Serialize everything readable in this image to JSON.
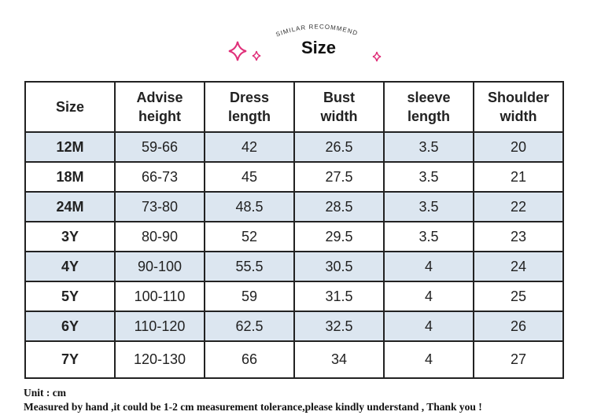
{
  "header": {
    "subtitle": "SIMILAR RECOMMEND",
    "title": "Size"
  },
  "table": {
    "columns": [
      [
        "Size"
      ],
      [
        "Advise",
        "height"
      ],
      [
        "Dress",
        "length"
      ],
      [
        "Bust",
        "width"
      ],
      [
        "sleeve",
        "length"
      ],
      [
        "Shoulder",
        "width"
      ]
    ],
    "rows": [
      [
        "12M",
        "59-66",
        42,
        26.5,
        3.5,
        20
      ],
      [
        "18M",
        "66-73",
        45,
        27.5,
        3.5,
        21
      ],
      [
        "24M",
        "73-80",
        48.5,
        28.5,
        3.5,
        22
      ],
      [
        "3Y",
        "80-90",
        52,
        29.5,
        3.5,
        23
      ],
      [
        "4Y",
        "90-100",
        55.5,
        30.5,
        4,
        24
      ],
      [
        "5Y",
        "100-110",
        59,
        31.5,
        4,
        25
      ],
      [
        "6Y",
        "110-120",
        62.5,
        32.5,
        4,
        26
      ],
      [
        "7Y",
        "120-130",
        66,
        34,
        4,
        27
      ]
    ]
  },
  "notes": [
    "Unit : cm",
    "Measured by hand ,it could be 1-2 cm measurement tolerance,please kindly understand , Thank you !"
  ]
}
